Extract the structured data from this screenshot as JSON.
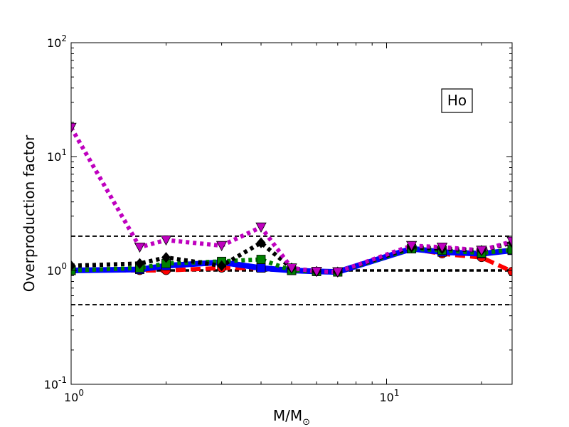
{
  "chart_data": {
    "type": "line",
    "xlabel": "M/M",
    "xlabel_sub": "⊙",
    "ylabel": "Overproduction factor",
    "x_scale": "log",
    "y_scale": "log",
    "xlim": [
      1,
      25
    ],
    "ylim": [
      0.1,
      100
    ],
    "x_ticks": [
      {
        "value": 1,
        "base": "10",
        "exp": "0"
      },
      {
        "value": 10,
        "base": "10",
        "exp": "1"
      }
    ],
    "y_ticks": [
      {
        "value": 0.1,
        "base": "10",
        "exp": "-1"
      },
      {
        "value": 1,
        "base": "10",
        "exp": "0"
      },
      {
        "value": 10,
        "base": "10",
        "exp": "1"
      },
      {
        "value": 100,
        "base": "10",
        "exp": "2"
      }
    ],
    "annotation": "Ho",
    "reference_lines": [
      0.5,
      1,
      2
    ],
    "series": [
      {
        "color": "#ff0000",
        "dash": "dashed",
        "marker": "circle",
        "x": [
          1,
          1.65,
          2,
          3,
          4,
          5,
          6,
          7,
          12,
          15,
          20,
          25
        ],
        "y": [
          1.0,
          1.0,
          1.0,
          1.05,
          1.05,
          1.0,
          0.98,
          0.97,
          1.55,
          1.4,
          1.3,
          0.98
        ]
      },
      {
        "color": "#0000ff",
        "dash": "solid",
        "marker": "square",
        "x": [
          1,
          1.65,
          2,
          3,
          4,
          5,
          6,
          7,
          12,
          15,
          20,
          25
        ],
        "y": [
          1.0,
          1.02,
          1.1,
          1.18,
          1.05,
          1.0,
          0.98,
          0.97,
          1.55,
          1.45,
          1.4,
          1.5
        ]
      },
      {
        "color": "#008000",
        "dash": "dotted",
        "marker": "square",
        "x": [
          1,
          1.65,
          2,
          3,
          4,
          5,
          6,
          7,
          12,
          15,
          20,
          25
        ],
        "y": [
          1.0,
          1.05,
          1.15,
          1.2,
          1.25,
          1.0,
          0.98,
          0.97,
          1.55,
          1.5,
          1.42,
          1.52
        ]
      },
      {
        "color": "#000000",
        "dash": "dotted",
        "marker": "diamond",
        "x": [
          1,
          1.65,
          2,
          3,
          4,
          5,
          6,
          7,
          12,
          15,
          20,
          25
        ],
        "y": [
          1.1,
          1.15,
          1.3,
          1.1,
          1.75,
          1.05,
          0.98,
          0.97,
          1.6,
          1.55,
          1.5,
          1.75
        ]
      },
      {
        "color": "#bf00bf",
        "dash": "dotted",
        "marker": "triangle-down",
        "x": [
          1,
          1.65,
          2,
          3,
          4,
          5,
          6,
          7,
          12,
          15,
          20,
          25
        ],
        "y": [
          18,
          1.6,
          1.85,
          1.65,
          2.4,
          1.05,
          0.98,
          0.97,
          1.65,
          1.6,
          1.5,
          1.8
        ]
      }
    ]
  }
}
